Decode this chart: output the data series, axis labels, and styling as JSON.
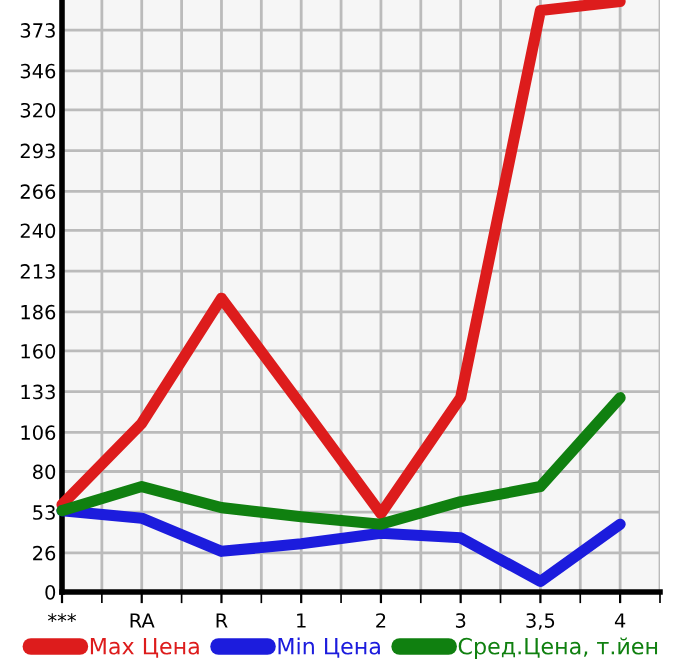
{
  "chart_data": {
    "type": "line",
    "categories": [
      "***",
      "RA",
      "R",
      "1",
      "2",
      "3",
      "3,5",
      "4"
    ],
    "series": [
      {
        "name": "Max Цена",
        "color": "#dd1c1c",
        "values": [
          58,
          112,
          195,
          124,
          52,
          129,
          386,
          392
        ]
      },
      {
        "name": "Min Цена",
        "color": "#1c1cdd",
        "values": [
          54,
          49,
          27,
          32,
          39,
          36,
          7,
          45
        ]
      },
      {
        "name": "Сред.Цена, т.йен",
        "color": "#108010",
        "values": [
          54,
          70,
          56,
          50,
          45,
          60,
          70,
          129
        ]
      }
    ],
    "ylim": [
      0,
      393
    ],
    "yticks": [
      0,
      26,
      53,
      80,
      106,
      133,
      160,
      186,
      213,
      240,
      266,
      293,
      320,
      346,
      373
    ],
    "grid": true,
    "legend": "bottom",
    "marker": "none",
    "line_style": "solid"
  }
}
